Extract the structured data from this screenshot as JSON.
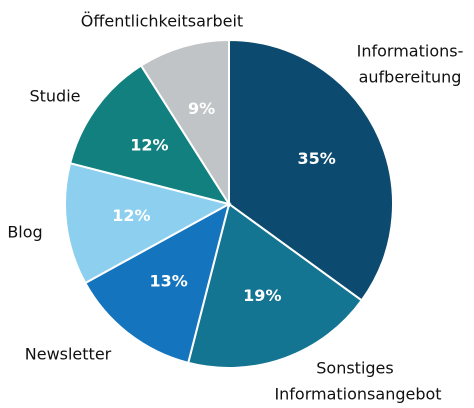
{
  "chart_data": {
    "type": "pie",
    "categories": [
      [
        "Informations-",
        "aufbereitung"
      ],
      [
        "Sonstiges",
        "Informationsangebot"
      ],
      [
        "Newsletter"
      ],
      [
        "Blog"
      ],
      [
        "Studie"
      ],
      [
        "Öffentlichkeitsarbeit"
      ]
    ],
    "values": [
      35,
      19,
      13,
      12,
      12,
      9
    ],
    "value_labels": [
      "35%",
      "19%",
      "13%",
      "12%",
      "12%",
      "9%"
    ],
    "colors": [
      "#0d4a70",
      "#137592",
      "#1474bd",
      "#8dcfee",
      "#138080",
      "#c0c4c6"
    ]
  }
}
